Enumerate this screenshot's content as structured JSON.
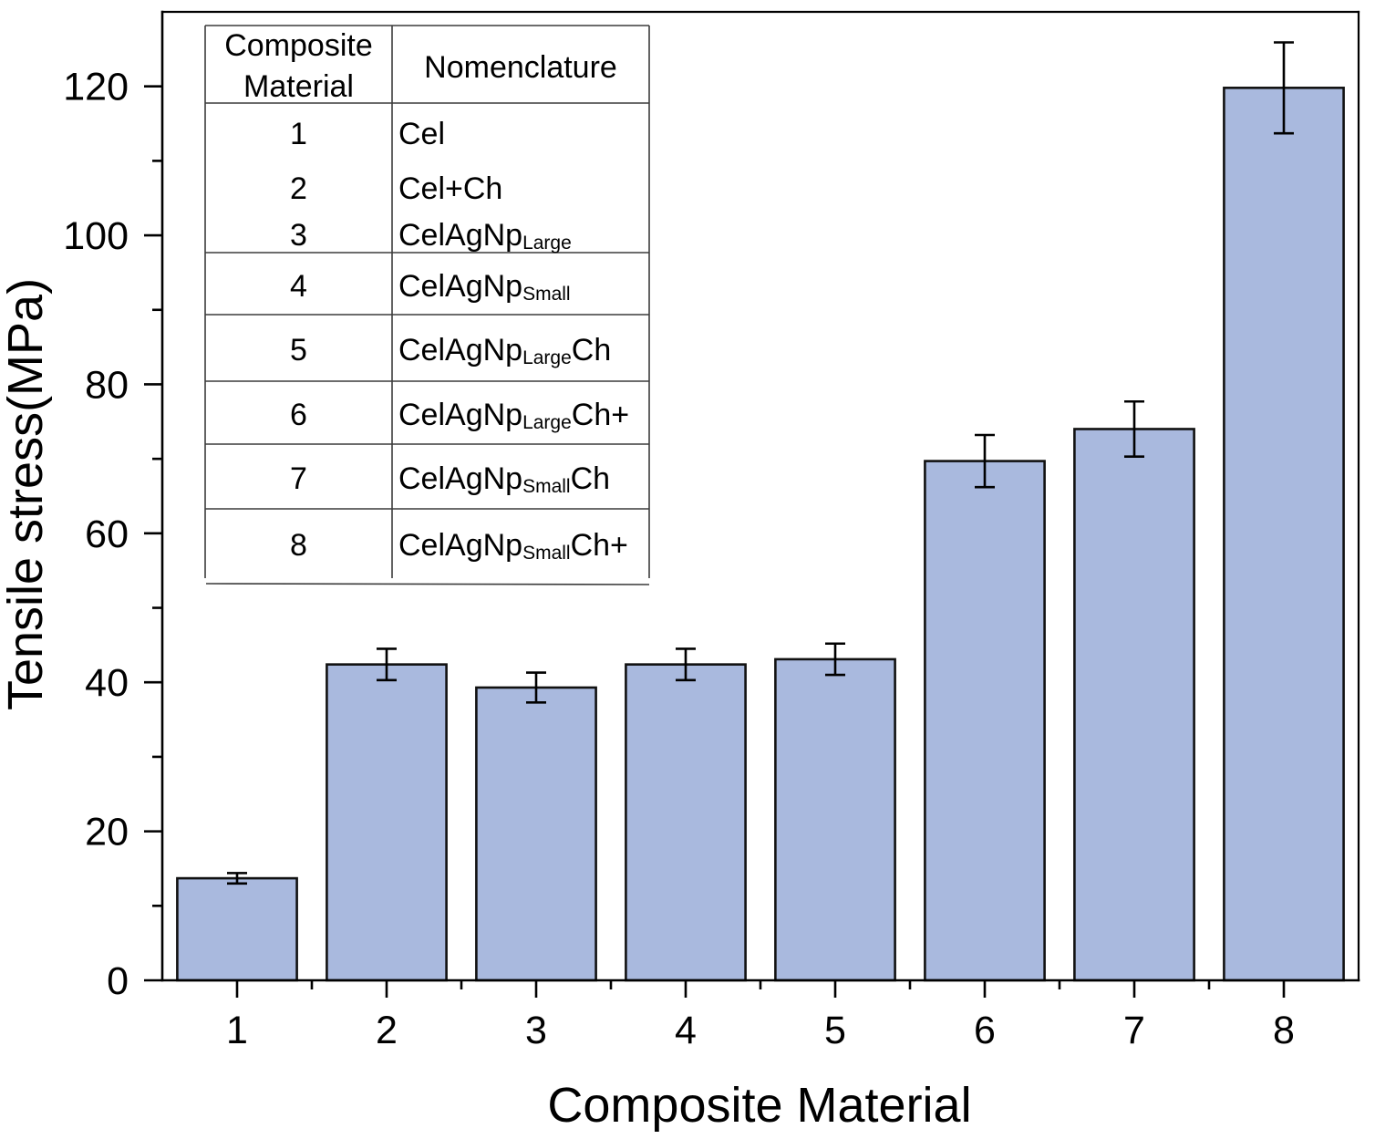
{
  "chart_data": {
    "type": "bar",
    "categories": [
      "1",
      "2",
      "3",
      "4",
      "5",
      "6",
      "7",
      "8"
    ],
    "values": [
      13.7,
      42.4,
      39.3,
      42.4,
      43.1,
      69.7,
      74.0,
      119.8
    ],
    "errors": [
      0.7,
      2.1,
      2.0,
      2.1,
      2.1,
      3.5,
      3.7,
      6.1
    ],
    "xlabel": "Composite Material",
    "ylabel": "Tensile stress(MPa)",
    "ylim": [
      0,
      130
    ],
    "yticks": [
      0,
      20,
      40,
      60,
      80,
      100,
      120
    ],
    "ytick_labels": [
      "0",
      "20",
      "40",
      "60",
      "80",
      "100",
      "120"
    ],
    "grid": false,
    "bar_color": "#A9B9DE",
    "edge_color": "#111111",
    "inset_table": {
      "header_material": [
        "Composite",
        "Material"
      ],
      "header_nomenclature": "Nomenclature",
      "rows": [
        {
          "label": "1",
          "nomenclature": "Cel"
        },
        {
          "label": "2",
          "nomenclature": "Cel+Ch"
        },
        {
          "label": "3",
          "nomenclature": "CelAgNp",
          "subscript": "Large"
        },
        {
          "label": "4",
          "nomenclature": "CelAgNp",
          "subscript": "Small"
        },
        {
          "label": "5",
          "nomenclature": "CelAgNp",
          "subscript": "Large",
          "suffix": "Ch"
        },
        {
          "label": "6",
          "nomenclature": "CelAgNp",
          "subscript": "Large",
          "suffix": "Ch+"
        },
        {
          "label": "7",
          "nomenclature": "CelAgNp",
          "subscript": "Small",
          "suffix": "Ch"
        },
        {
          "label": "8",
          "nomenclature": "CelAgNp",
          "subscript": "Small",
          "suffix": "Ch+"
        }
      ]
    }
  }
}
